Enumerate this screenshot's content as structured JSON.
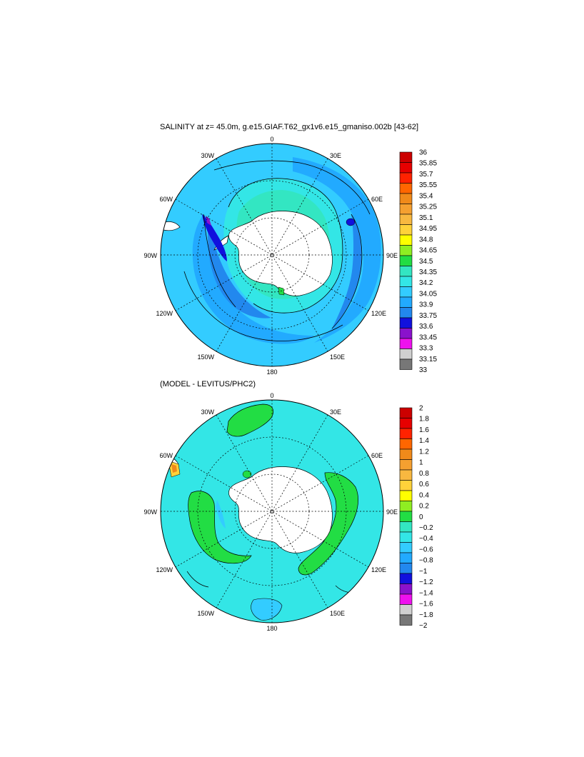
{
  "colors": {
    "ocean_light": "#33ccff",
    "ocean_mid": "#3399ff",
    "ocean_deep": "#2266ee",
    "ocean_cyan": "#33e6e6",
    "land": "#ffffff",
    "green": "#33dd55",
    "blue_strong": "#1111dd"
  },
  "maps": [
    {
      "title": "SALINITY at z=  45.0m, g.e15.GIAF.T62_gx1v6.e15_gmaniso.002b [43-62]",
      "longitude_labels": {
        "lon_0": "0",
        "lon_30e": "30E",
        "lon_60e": "60E",
        "lon_90e": "90E",
        "lon_120e": "120E",
        "lon_150e": "150E",
        "lon_180": "180",
        "lon_150w": "150W",
        "lon_120w": "120W",
        "lon_90w": "90W",
        "lon_60w": "60W",
        "lon_30w": "30W"
      },
      "colorbar": {
        "labels": [
          "36",
          "35.85",
          "35.7",
          "35.55",
          "35.4",
          "35.25",
          "35.1",
          "34.95",
          "34.8",
          "34.65",
          "34.5",
          "34.35",
          "34.2",
          "34.05",
          "33.9",
          "33.75",
          "33.6",
          "33.45",
          "33.3",
          "33.15",
          "33"
        ],
        "colors": [
          "#cc0000",
          "#e60000",
          "#ff2200",
          "#ff6600",
          "#f08a1a",
          "#f5a030",
          "#f8b840",
          "#ffd23a",
          "#ffff00",
          "#8fee22",
          "#22dd44",
          "#33e6c2",
          "#33e6e6",
          "#33ccff",
          "#22aaff",
          "#2288ee",
          "#1111dd",
          "#8a12cc",
          "#ee11ee",
          "#d0d0d0",
          "#777777"
        ]
      }
    },
    {
      "title": "(MODEL - LEVITUS/PHC2)",
      "longitude_labels": {
        "lon_0": "0",
        "lon_30e": "30E",
        "lon_60e": "60E",
        "lon_90e": "90E",
        "lon_120e": "120E",
        "lon_150e": "150E",
        "lon_180": "180",
        "lon_150w": "150W",
        "lon_120w": "120W",
        "lon_90w": "90W",
        "lon_60w": "60W",
        "lon_30w": "30W"
      },
      "colorbar": {
        "labels": [
          "2",
          "1.8",
          "1.6",
          "1.4",
          "1.2",
          "1",
          "0.8",
          "0.6",
          "0.4",
          "0.2",
          "0",
          "−0.2",
          "−0.4",
          "−0.6",
          "−0.8",
          "−1",
          "−1.2",
          "−1.4",
          "−1.6",
          "−1.8",
          "−2"
        ],
        "colors": [
          "#cc0000",
          "#e60000",
          "#ff2200",
          "#ff6600",
          "#f08a1a",
          "#f5a030",
          "#f8b840",
          "#ffd23a",
          "#ffff00",
          "#8fee22",
          "#22dd44",
          "#33e6c2",
          "#33e6e6",
          "#33ccff",
          "#22aaff",
          "#2288ee",
          "#1111dd",
          "#8a12cc",
          "#ee11ee",
          "#d0d0d0",
          "#777777"
        ]
      }
    }
  ]
}
